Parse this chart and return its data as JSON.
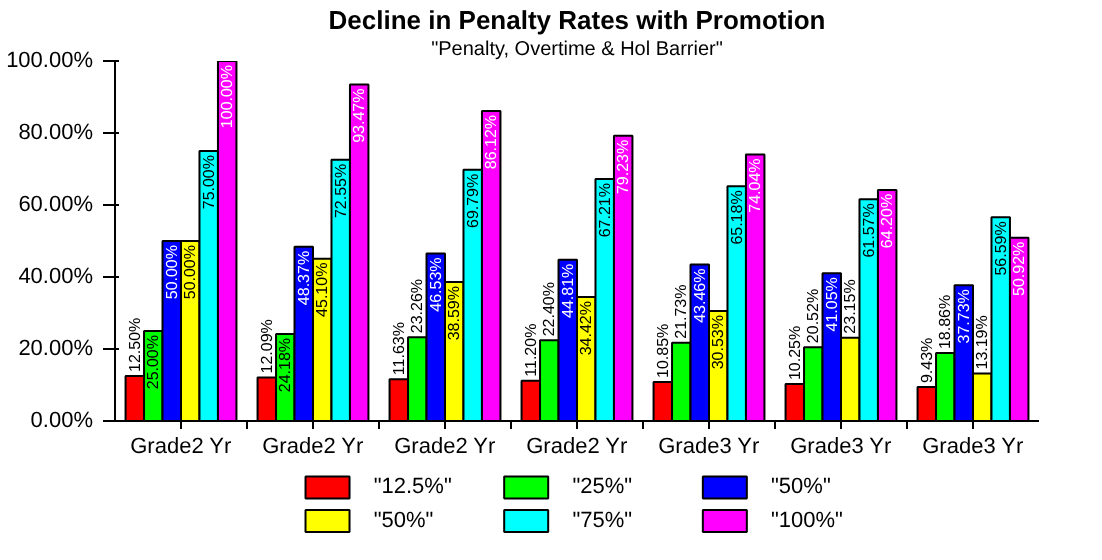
{
  "chart_data": {
    "type": "bar",
    "title": "Decline in Penalty Rates with Promotion",
    "subtitle": "\"Penalty, Overtime & Hol Barrier\"",
    "categories": [
      "Grade2 Yr",
      "Grade2 Yr",
      "Grade2 Yr",
      "Grade2 Yr",
      "Grade3 Yr",
      "Grade3 Yr",
      "Grade3 Yr"
    ],
    "series": [
      {
        "name": "\"12.5%\"",
        "color": "#ff0000",
        "values": [
          12.5,
          12.09,
          11.63,
          11.2,
          10.85,
          10.25,
          9.43
        ],
        "value_labels": [
          "12.50%",
          "12.09%",
          "11.63%",
          "11.20%",
          "10.85%",
          "10.25%",
          "9.43%"
        ]
      },
      {
        "name": "\"25%\"",
        "color": "#00ff00",
        "values": [
          25.0,
          24.18,
          23.26,
          22.4,
          21.73,
          20.52,
          18.86
        ],
        "value_labels": [
          "25.00%",
          "24.18%",
          "23.26%",
          "22.40%",
          "21.73%",
          "20.52%",
          "18.86%"
        ]
      },
      {
        "name": "\"50%\"",
        "color": "#0000ff",
        "values": [
          50.0,
          48.37,
          46.53,
          44.81,
          43.46,
          41.05,
          37.73
        ],
        "value_labels": [
          "50.00%",
          "48.37%",
          "46.53%",
          "44.81%",
          "43.46%",
          "41.05%",
          "37.73%"
        ]
      },
      {
        "name": "\"50%\"",
        "color": "#ffff00",
        "values": [
          50.0,
          45.1,
          38.59,
          34.42,
          30.53,
          23.15,
          13.19
        ],
        "value_labels": [
          "50.00%",
          "45.10%",
          "38.59%",
          "34.42%",
          "30.53%",
          "23.15%",
          "13.19%"
        ]
      },
      {
        "name": "\"75%\"",
        "color": "#00ffff",
        "values": [
          75.0,
          72.55,
          69.79,
          67.21,
          65.18,
          61.57,
          56.59
        ],
        "value_labels": [
          "75.00%",
          "72.55%",
          "69.79%",
          "67.21%",
          "65.18%",
          "61.57%",
          "56.59%"
        ]
      },
      {
        "name": "\"100%\"",
        "color": "#ff00ff",
        "values": [
          100.0,
          93.47,
          86.12,
          79.23,
          74.04,
          64.2,
          50.92
        ],
        "value_labels": [
          "100.00%",
          "93.47%",
          "86.12%",
          "79.23%",
          "74.04%",
          "64.20%",
          "50.92%"
        ]
      }
    ],
    "ylim": [
      0,
      100
    ],
    "yticks": [
      {
        "value": 0,
        "label": "0.00%"
      },
      {
        "value": 20,
        "label": "20.00%"
      },
      {
        "value": 40,
        "label": "40.00%"
      },
      {
        "value": 60,
        "label": "60.00%"
      },
      {
        "value": 80,
        "label": "80.00%"
      },
      {
        "value": 100,
        "label": "100.00%"
      }
    ],
    "legend": "bottom"
  }
}
